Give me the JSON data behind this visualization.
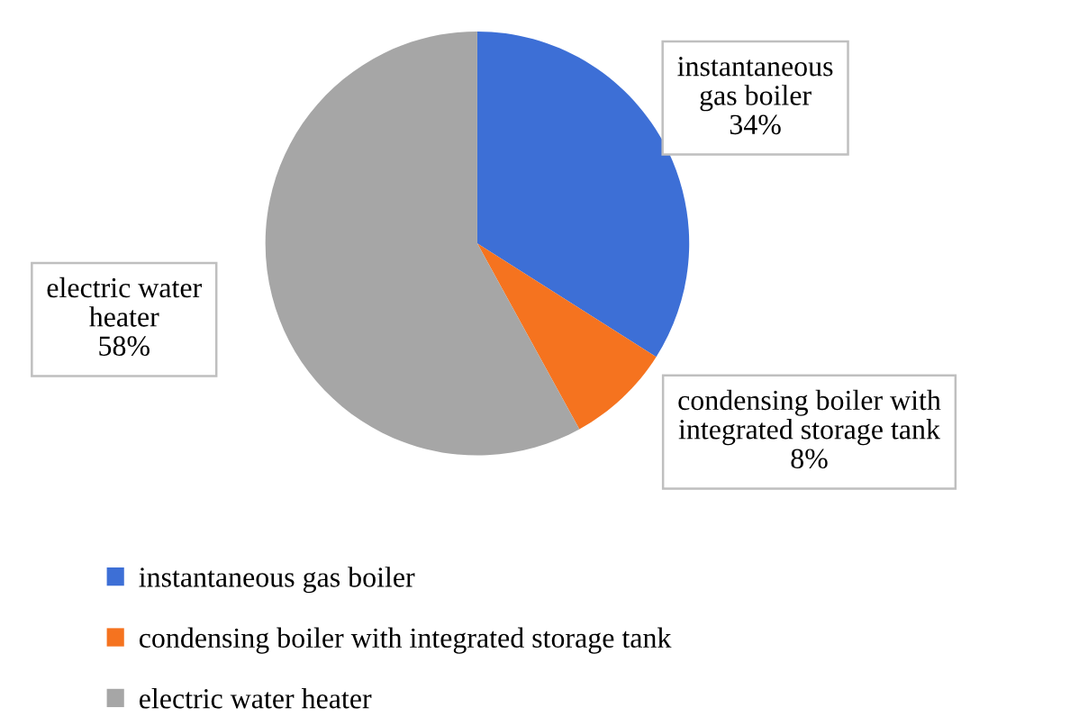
{
  "chart_data": {
    "type": "pie",
    "categories": [
      "instantaneous gas boiler",
      "condensing boiler with integrated storage tank",
      "electric water heater"
    ],
    "values": [
      34,
      8,
      58
    ],
    "colors": [
      "#3d6fd6",
      "#f5731f",
      "#a6a6a6"
    ],
    "value_labels": [
      "instantaneous\ngas boiler\n34%",
      "condensing boiler with\nintegrated storage tank\n8%",
      "electric water\nheater\n58%"
    ],
    "legend": "bottom"
  }
}
